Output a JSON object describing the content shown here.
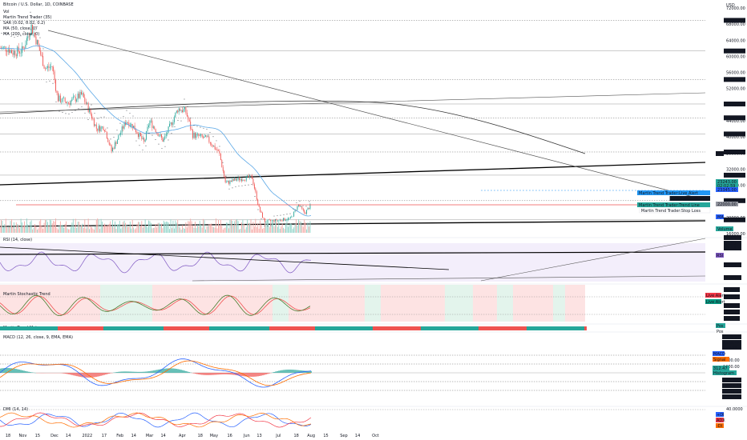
{
  "chart_data": {
    "type": "candlestick",
    "title": "Bitcoin / U.S. Dollar, 1D, COINBASE",
    "legend_lines": [
      "Vol",
      "Martin Trend Trader (35)",
      "SAR (0.02, 0.02, 0.2)",
      "MA (50, close, 0)",
      "MA (200, close, 0)"
    ],
    "currency": "USD",
    "x_ticks": [
      "18",
      "Nov",
      "15",
      "Dec",
      "14",
      "2022",
      "17",
      "Feb",
      "14",
      "Mar",
      "14",
      "Apr",
      "18",
      "May",
      "16",
      "Jun",
      "13",
      "Jul",
      "18",
      "Aug",
      "15",
      "Sep",
      "14",
      "Oct"
    ],
    "price_ticks": [
      "72000.00",
      "68000.00",
      "64000.00",
      "60000.00",
      "56000.00",
      "52000.00",
      "48000.00",
      "44000.00",
      "40000.00",
      "36000.00",
      "32000.00",
      "28000.00",
      "24000.00",
      "20000.00",
      "16000.00"
    ],
    "price_levels": [
      "68933.86",
      "61335.66",
      "54257.81",
      "48173.20",
      "44741.32",
      "40732.73",
      "36258.48",
      "30507.81",
      "24180.88",
      "19417.09"
    ],
    "price_badges": [
      {
        "text": "MA",
        "color": "#131722"
      },
      {
        "text": "23243.00",
        "color": "#26a69a"
      },
      {
        "text": "02:02:59",
        "color": "#26a69a"
      },
      {
        "text": "23345.00",
        "color": "#2962ff"
      },
      {
        "text": "22000.00",
        "color": "#9598a1"
      },
      {
        "text": "MA",
        "color": "#2962ff"
      },
      {
        "text": "Volume",
        "color": "#26a69a"
      }
    ],
    "indicator_labels": [
      {
        "text": "Martin Trend Trader:Live Alert",
        "color": "#2196f3"
      },
      {
        "text": "SAR:ParabolicSAR",
        "color": "#131722"
      },
      {
        "text": "Martin Trend Trader:Trend Line",
        "color": "#26a69a"
      },
      {
        "text": "Martin Trend Trader:Stop Loss",
        "color": "#ffffff"
      }
    ],
    "rsi_title": "RSI (14, close)",
    "rsi_ticks": [
      "78.53",
      "69.60",
      "57.34",
      "43.41",
      "25.60"
    ],
    "rsi_badge": "RSI",
    "stoch_title": "Martin Stochastic Trend",
    "stoch_ticks": [
      "97.55",
      "80.00",
      "35.35",
      "29.70",
      "0.41"
    ],
    "stoch_badges": [
      {
        "text": "Live Alert",
        "color": "#f23645"
      },
      {
        "text": "Live Alert",
        "color": "#089981"
      }
    ],
    "trend_title": "Martin Trend Meter",
    "trend_badges": [
      "Pos",
      "Pos"
    ],
    "macd_title": "MACD (12, 26, close, 9, EMA, EMA)",
    "macd_ticks": [
      "2366.74",
      "1528.11",
      "890.55",
      "2000.00",
      "1000.00",
      "0.00",
      "-232.47",
      "-868.54",
      "-1433.17",
      "-2497.70"
    ],
    "macd_badges": [
      {
        "text": "MACD",
        "color": "#2962ff"
      },
      {
        "text": "Signal",
        "color": "#ff6d00"
      },
      {
        "text": "312.47",
        "color": "#26a69a"
      },
      {
        "text": "Histogram",
        "color": "#26a69a"
      }
    ],
    "dmi_title": "DMI (14, 14)",
    "dmi_ticks": [
      "40.0000"
    ],
    "dmi_badges": [
      {
        "text": "+DI",
        "color": "#2962ff"
      },
      {
        "text": "ADX",
        "color": "#f23645"
      },
      {
        "text": "-DI",
        "color": "#ff6d00"
      }
    ],
    "y_range": [
      16000,
      72000
    ],
    "series": [
      {
        "name": "Price (close)",
        "values": [
          {
            "x": "2021-10-18",
            "y": 62000
          },
          {
            "x": "2021-10-22",
            "y": 61000
          },
          {
            "x": "2021-11-01",
            "y": 61500
          },
          {
            "x": "2021-11-09",
            "y": 67500
          },
          {
            "x": "2021-11-15",
            "y": 63000
          },
          {
            "x": "2021-11-22",
            "y": 57000
          },
          {
            "x": "2021-11-29",
            "y": 57500
          },
          {
            "x": "2021-12-04",
            "y": 49500
          },
          {
            "x": "2021-12-14",
            "y": 48500
          },
          {
            "x": "2021-12-27",
            "y": 50500
          },
          {
            "x": "2022-01-03",
            "y": 46500
          },
          {
            "x": "2022-01-10",
            "y": 42000
          },
          {
            "x": "2022-01-17",
            "y": 42500
          },
          {
            "x": "2022-01-24",
            "y": 36500
          },
          {
            "x": "2022-02-07",
            "y": 44000
          },
          {
            "x": "2022-02-14",
            "y": 42500
          },
          {
            "x": "2022-02-24",
            "y": 38500
          },
          {
            "x": "2022-03-01",
            "y": 44000
          },
          {
            "x": "2022-03-14",
            "y": 39000
          },
          {
            "x": "2022-03-28",
            "y": 47000
          },
          {
            "x": "2022-04-04",
            "y": 46500
          },
          {
            "x": "2022-04-11",
            "y": 40500
          },
          {
            "x": "2022-04-25",
            "y": 39500
          },
          {
            "x": "2022-05-06",
            "y": 36000
          },
          {
            "x": "2022-05-12",
            "y": 28500
          },
          {
            "x": "2022-05-23",
            "y": 29500
          },
          {
            "x": "2022-06-06",
            "y": 30000
          },
          {
            "x": "2022-06-13",
            "y": 22000
          },
          {
            "x": "2022-06-18",
            "y": 19000
          },
          {
            "x": "2022-07-01",
            "y": 19300
          },
          {
            "x": "2022-07-13",
            "y": 19800
          },
          {
            "x": "2022-07-20",
            "y": 23200
          },
          {
            "x": "2022-07-26",
            "y": 21000
          },
          {
            "x": "2022-08-01",
            "y": 23200
          }
        ]
      }
    ]
  }
}
